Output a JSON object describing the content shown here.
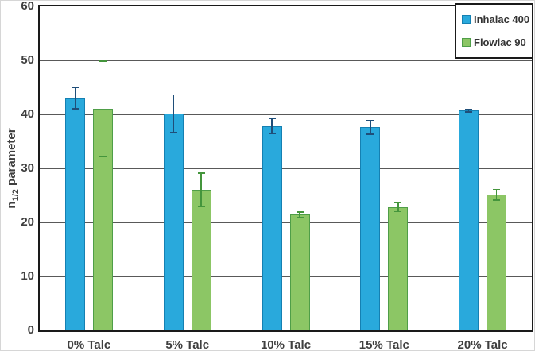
{
  "figure": {
    "background": "#ffffff",
    "frame_color": "#1a1a1a",
    "gridline_color": "#595959"
  },
  "yaxis": {
    "title_main": "n",
    "title_sub": "1/2",
    "title_rest": "parameter",
    "ticks": [
      0,
      10,
      20,
      30,
      40,
      50,
      60
    ]
  },
  "legend": {
    "items": [
      {
        "label": "Inhalac 400",
        "color": "#29A9DC",
        "border": "#1580B2"
      },
      {
        "label": "Flowlac 90",
        "color": "#8CC665",
        "border": "#4F9E48"
      }
    ]
  },
  "chart_data": {
    "type": "bar",
    "title": "",
    "xlabel": "",
    "ylabel": "n1/2 parameter",
    "categories": [
      "0% Talc",
      "5% Talc",
      "10% Talc",
      "15% Talc",
      "20% Talc"
    ],
    "series": [
      {
        "name": "Inhalac 400",
        "color": "#29A9DC",
        "border_color": "#1580B2",
        "error_color": "#1F4E79",
        "values": [
          43.0,
          40.1,
          37.8,
          37.6,
          40.7
        ],
        "errors": [
          2.1,
          3.6,
          1.5,
          1.4,
          0.4
        ]
      },
      {
        "name": "Flowlac 90",
        "color": "#8CC665",
        "border_color": "#4F9E48",
        "error_color": "#44953C",
        "values": [
          41.0,
          26.0,
          21.4,
          22.8,
          25.1
        ],
        "errors": [
          9.0,
          3.2,
          0.6,
          0.9,
          1.1
        ]
      }
    ],
    "ylim": [
      0,
      60
    ],
    "grid": true,
    "legend_position": "top-right"
  }
}
